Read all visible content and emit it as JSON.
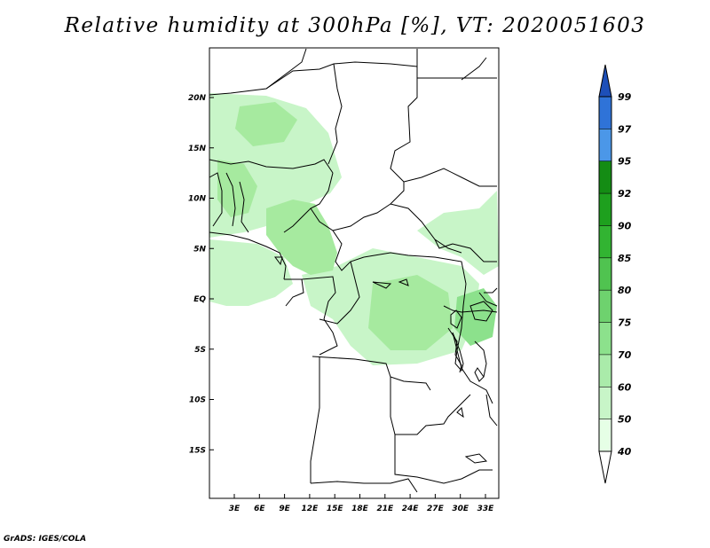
{
  "title": "Relative humidity at 300hPa [%], VT: 2020051603",
  "credit": "GrADS: IGES/COLA",
  "map": {
    "lat_labels": [
      "20N",
      "15N",
      "10N",
      "5N",
      "EQ",
      "5S",
      "10S",
      "15S"
    ],
    "lat_values": [
      20,
      15,
      10,
      5,
      0,
      -5,
      -10,
      -15
    ],
    "lon_labels": [
      "3E",
      "6E",
      "9E",
      "12E",
      "15E",
      "18E",
      "21E",
      "24E",
      "27E",
      "30E",
      "33E"
    ],
    "lon_values": [
      3,
      6,
      9,
      12,
      15,
      18,
      21,
      24,
      27,
      30,
      33
    ]
  },
  "colorbar": {
    "labels": [
      "40",
      "50",
      "60",
      "70",
      "75",
      "80",
      "85",
      "90",
      "92",
      "95",
      "97",
      "99"
    ],
    "colors": [
      "#ffffff",
      "#e6ffe6",
      "#c8f5c8",
      "#aaebaa",
      "#8ce18c",
      "#6ed26e",
      "#50c350",
      "#32b432",
      "#1ea01e",
      "#148c14",
      "#4b97e8",
      "#2f73d8",
      "#1d4fb8"
    ]
  },
  "colors": {
    "land_border": "#000000",
    "humid_light": "#c8f5c8",
    "humid_mid": "#a6ea9f",
    "humid_dark": "#8ce18c"
  }
}
